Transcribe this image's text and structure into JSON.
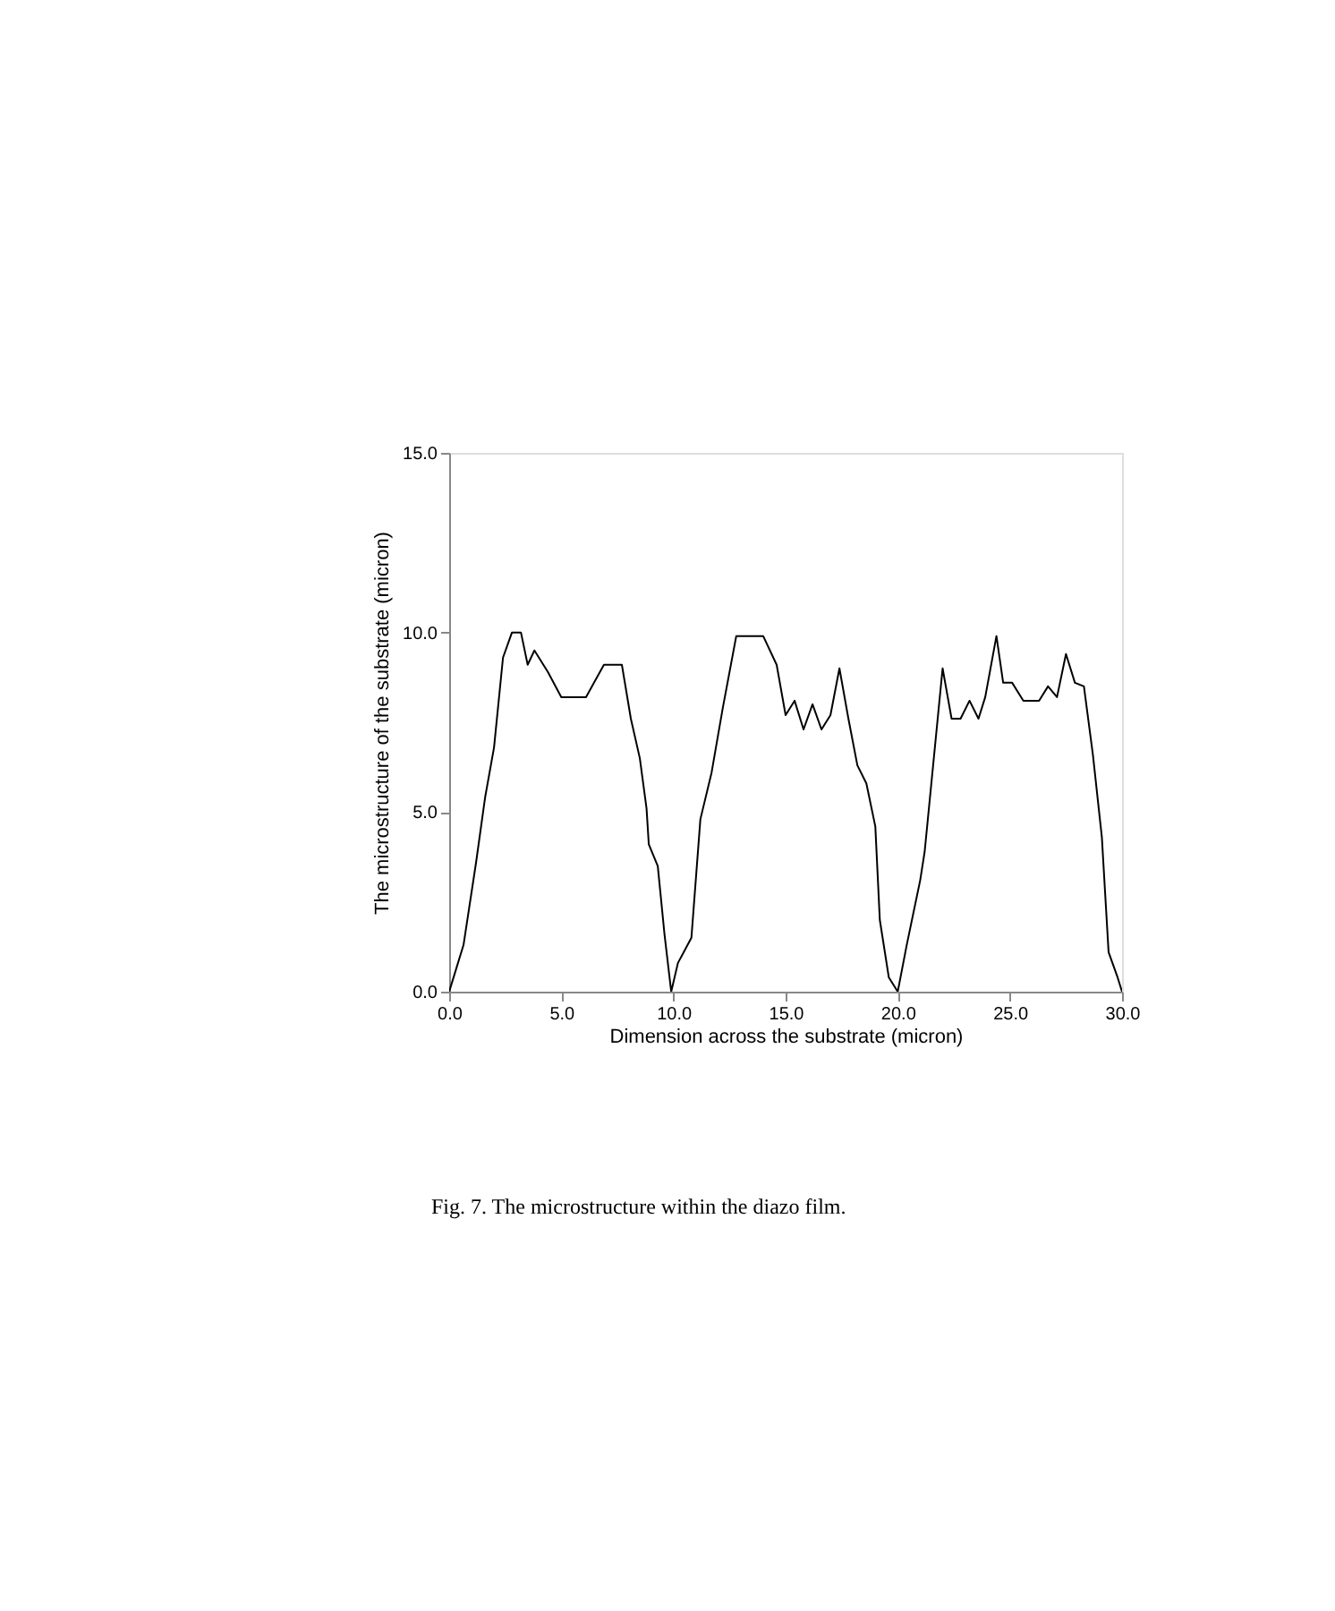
{
  "chart_data": {
    "type": "line",
    "xlabel": "Dimension across the substrate (micron)",
    "ylabel": "The microstructure of the substrate (micron)",
    "annotations": [
      "Fig. 7. The microstructure within the diazo film."
    ],
    "xlim": [
      0,
      30
    ],
    "ylim": [
      0,
      15
    ],
    "xticks": [
      {
        "value": 0,
        "label": "0.0"
      },
      {
        "value": 5,
        "label": "5.0"
      },
      {
        "value": 10,
        "label": "10.0"
      },
      {
        "value": 15,
        "label": "15.0"
      },
      {
        "value": 20,
        "label": "20.0"
      },
      {
        "value": 25,
        "label": "25.0"
      },
      {
        "value": 30,
        "label": "30.0"
      }
    ],
    "yticks": [
      {
        "value": 0,
        "label": "0.0"
      },
      {
        "value": 5,
        "label": "5.0"
      },
      {
        "value": 10,
        "label": "10.0"
      },
      {
        "value": 15,
        "label": "15.0"
      }
    ],
    "grid": false,
    "marker": "none",
    "line_style": "solid",
    "series": [
      {
        "color": "#000000",
        "x": [
          0,
          0.64,
          1.2,
          1.6,
          2.0,
          2.4,
          2.8,
          3.2,
          3.5,
          3.8,
          4.4,
          5.0,
          6.1,
          6.9,
          7.7,
          8.1,
          8.5,
          8.8,
          8.9,
          9.3,
          9.6,
          9.9,
          10.2,
          10.8,
          11.2,
          11.7,
          12.2,
          12.8,
          14.0,
          14.6,
          15.0,
          15.4,
          15.8,
          16.2,
          16.6,
          17.0,
          17.4,
          17.8,
          18.2,
          18.6,
          19.0,
          19.2,
          19.6,
          20.0,
          20.4,
          21.0,
          21.2,
          22.0,
          22.4,
          22.8,
          23.2,
          23.6,
          23.9,
          24.4,
          24.7,
          25.1,
          25.6,
          26.3,
          26.7,
          27.1,
          27.5,
          27.9,
          28.3,
          28.7,
          29.1,
          29.4,
          29.8,
          30.0
        ],
        "values": [
          0,
          1.3,
          3.6,
          5.4,
          6.8,
          9.3,
          10,
          10,
          9.1,
          9.5,
          8.9,
          8.2,
          8.2,
          9.1,
          9.1,
          7.6,
          6.5,
          5.1,
          4.1,
          3.5,
          1.6,
          0,
          0.8,
          1.5,
          4.8,
          6.1,
          7.9,
          9.9,
          9.9,
          9.1,
          7.7,
          8.1,
          7.3,
          8.0,
          7.3,
          7.7,
          9.0,
          7.6,
          6.3,
          5.8,
          4.6,
          2.0,
          0.4,
          0,
          1.3,
          3.1,
          3.9,
          9.0,
          7.6,
          7.6,
          8.1,
          7.6,
          8.2,
          9.9,
          8.6,
          8.6,
          8.1,
          8.1,
          8.5,
          8.2,
          9.4,
          8.6,
          8.5,
          6.6,
          4.3,
          1.1,
          0.4,
          0
        ]
      }
    ]
  }
}
